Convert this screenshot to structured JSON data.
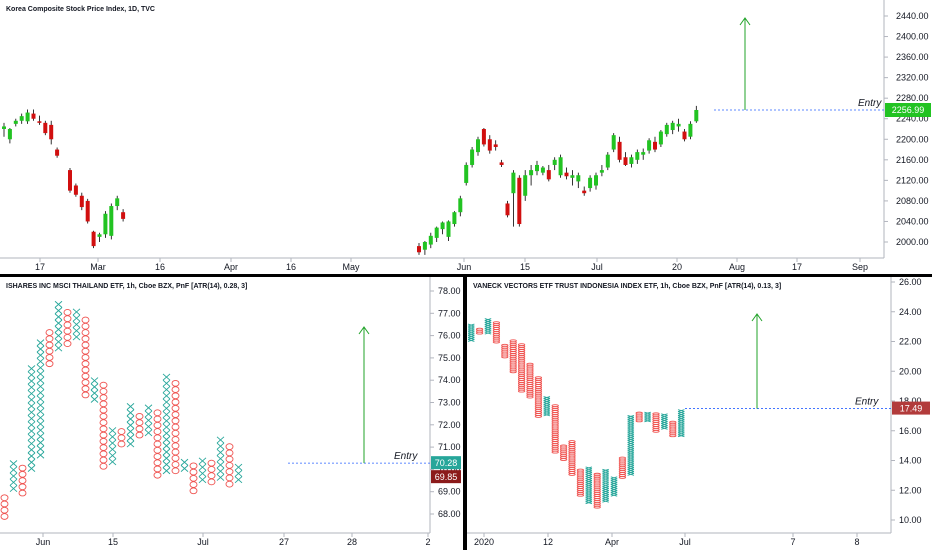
{
  "chart_data": [
    {
      "type": "candlestick",
      "title": "Korea Composite Stock Price Index, 1D, TVC",
      "x_tick_labels": [
        "17",
        "Mar",
        "16",
        "Apr",
        "16",
        "May",
        "Jun",
        "15",
        "Jul",
        "20",
        "Aug",
        "17",
        "Sep"
      ],
      "y_ticks": [
        2000,
        2040,
        2080,
        2120,
        2160,
        2200,
        2240,
        2280,
        2320,
        2360,
        2400,
        2440
      ],
      "ylim": [
        1975,
        2450
      ],
      "last_price": "2256.99",
      "entry_label": "Entry",
      "entry_level": 2257,
      "colors": {
        "up": "#22c322",
        "down": "#d10f0f"
      },
      "segments": [
        {
          "name": "feb",
          "candles": [
            {
              "o": 2220,
              "h": 2232,
              "l": 2205,
              "c": 2225
            },
            {
              "o": 2200,
              "h": 2222,
              "l": 2192,
              "c": 2220
            },
            {
              "o": 2230,
              "h": 2240,
              "l": 2225,
              "c": 2236
            },
            {
              "o": 2236,
              "h": 2250,
              "l": 2230,
              "c": 2245
            },
            {
              "o": 2235,
              "h": 2258,
              "l": 2230,
              "c": 2252
            },
            {
              "o": 2250,
              "h": 2258,
              "l": 2236,
              "c": 2240
            },
            {
              "o": 2235,
              "h": 2246,
              "l": 2228,
              "c": 2232
            },
            {
              "o": 2232,
              "h": 2236,
              "l": 2208,
              "c": 2212
            },
            {
              "o": 2228,
              "h": 2236,
              "l": 2190,
              "c": 2200
            },
            {
              "o": 2180,
              "h": 2184,
              "l": 2164,
              "c": 2168
            }
          ]
        },
        {
          "name": "mar",
          "candles": [
            {
              "o": 2140,
              "h": 2144,
              "l": 2096,
              "c": 2100
            },
            {
              "o": 2110,
              "h": 2114,
              "l": 2088,
              "c": 2092
            },
            {
              "o": 2090,
              "h": 2096,
              "l": 2062,
              "c": 2068
            },
            {
              "o": 2080,
              "h": 2084,
              "l": 2036,
              "c": 2040
            },
            {
              "o": 2020,
              "h": 2022,
              "l": 1988,
              "c": 1992
            },
            {
              "o": 2010,
              "h": 2018,
              "l": 2000,
              "c": 2015
            },
            {
              "o": 2015,
              "h": 2060,
              "l": 2008,
              "c": 2055
            },
            {
              "o": 2012,
              "h": 2075,
              "l": 2005,
              "c": 2070
            },
            {
              "o": 2070,
              "h": 2090,
              "l": 2062,
              "c": 2085
            },
            {
              "o": 2058,
              "h": 2064,
              "l": 2040,
              "c": 2045
            }
          ]
        },
        {
          "name": "junjul",
          "candles": [
            {
              "o": 1992,
              "h": 1998,
              "l": 1975,
              "c": 1980
            },
            {
              "o": 1985,
              "h": 2002,
              "l": 1975,
              "c": 2000
            },
            {
              "o": 1995,
              "h": 2018,
              "l": 1988,
              "c": 2012
            },
            {
              "o": 2008,
              "h": 2030,
              "l": 2000,
              "c": 2028
            },
            {
              "o": 2025,
              "h": 2040,
              "l": 2015,
              "c": 2038
            },
            {
              "o": 2010,
              "h": 2042,
              "l": 2002,
              "c": 2040
            },
            {
              "o": 2035,
              "h": 2060,
              "l": 2030,
              "c": 2058
            },
            {
              "o": 2058,
              "h": 2090,
              "l": 2050,
              "c": 2085
            },
            {
              "o": 2115,
              "h": 2155,
              "l": 2110,
              "c": 2150
            },
            {
              "o": 2150,
              "h": 2185,
              "l": 2145,
              "c": 2180
            },
            {
              "o": 2175,
              "h": 2205,
              "l": 2168,
              "c": 2200
            },
            {
              "o": 2220,
              "h": 2222,
              "l": 2186,
              "c": 2190
            },
            {
              "o": 2200,
              "h": 2208,
              "l": 2172,
              "c": 2178
            },
            {
              "o": 2190,
              "h": 2198,
              "l": 2178,
              "c": 2185
            },
            {
              "o": 2155,
              "h": 2160,
              "l": 2146,
              "c": 2150
            },
            {
              "o": 2075,
              "h": 2080,
              "l": 2048,
              "c": 2052
            },
            {
              "o": 2095,
              "h": 2140,
              "l": 2030,
              "c": 2135
            },
            {
              "o": 2125,
              "h": 2130,
              "l": 2030,
              "c": 2035
            },
            {
              "o": 2090,
              "h": 2140,
              "l": 2080,
              "c": 2130
            },
            {
              "o": 2130,
              "h": 2150,
              "l": 2110,
              "c": 2140
            },
            {
              "o": 2138,
              "h": 2158,
              "l": 2130,
              "c": 2150
            },
            {
              "o": 2135,
              "h": 2148,
              "l": 2130,
              "c": 2145
            },
            {
              "o": 2140,
              "h": 2150,
              "l": 2118,
              "c": 2122
            },
            {
              "o": 2150,
              "h": 2165,
              "l": 2140,
              "c": 2160
            },
            {
              "o": 2130,
              "h": 2170,
              "l": 2125,
              "c": 2165
            },
            {
              "o": 2135,
              "h": 2145,
              "l": 2122,
              "c": 2128
            },
            {
              "o": 2125,
              "h": 2140,
              "l": 2110,
              "c": 2130
            },
            {
              "o": 2118,
              "h": 2135,
              "l": 2105,
              "c": 2130
            },
            {
              "o": 2100,
              "h": 2108,
              "l": 2090,
              "c": 2095
            },
            {
              "o": 2105,
              "h": 2130,
              "l": 2098,
              "c": 2125
            },
            {
              "o": 2110,
              "h": 2135,
              "l": 2102,
              "c": 2130
            },
            {
              "o": 2135,
              "h": 2150,
              "l": 2128,
              "c": 2140
            },
            {
              "o": 2145,
              "h": 2175,
              "l": 2140,
              "c": 2170
            },
            {
              "o": 2180,
              "h": 2212,
              "l": 2175,
              "c": 2208
            },
            {
              "o": 2195,
              "h": 2205,
              "l": 2155,
              "c": 2160
            },
            {
              "o": 2165,
              "h": 2175,
              "l": 2148,
              "c": 2150
            },
            {
              "o": 2152,
              "h": 2170,
              "l": 2145,
              "c": 2165
            },
            {
              "o": 2160,
              "h": 2180,
              "l": 2152,
              "c": 2175
            },
            {
              "o": 2170,
              "h": 2182,
              "l": 2160,
              "c": 2175
            },
            {
              "o": 2178,
              "h": 2202,
              "l": 2172,
              "c": 2198
            },
            {
              "o": 2195,
              "h": 2205,
              "l": 2175,
              "c": 2180
            },
            {
              "o": 2190,
              "h": 2218,
              "l": 2185,
              "c": 2215
            },
            {
              "o": 2210,
              "h": 2232,
              "l": 2205,
              "c": 2228
            },
            {
              "o": 2218,
              "h": 2236,
              "l": 2210,
              "c": 2232
            },
            {
              "o": 2225,
              "h": 2240,
              "l": 2215,
              "c": 2230
            },
            {
              "o": 2215,
              "h": 2220,
              "l": 2196,
              "c": 2200
            },
            {
              "o": 2205,
              "h": 2235,
              "l": 2200,
              "c": 2230
            },
            {
              "o": 2235,
              "h": 2265,
              "l": 2232,
              "c": 2257
            }
          ]
        }
      ]
    },
    {
      "type": "point-and-figure",
      "title": "ISHARES INC MSCI THAILAND ETF, 1h, Cboe BZX, PnF [ATR(14), 0.28, 3]",
      "x_tick_labels": [
        "Jun",
        "15",
        "Jul",
        "27",
        "28",
        "2"
      ],
      "y_ticks": [
        "68.00",
        "69.00",
        "70.00",
        "71.00",
        "72.00",
        "73.00",
        "74.00",
        "75.00",
        "76.00",
        "77.00",
        "78.00"
      ],
      "ylim": [
        67.5,
        78.3
      ],
      "box_size": 0.28,
      "last_price": "70.28",
      "other_price": "69.85",
      "entry_label": "Entry",
      "entry_level": 70.28,
      "colors": {
        "x": "#26a69a",
        "o": "#ef5350"
      },
      "columns": [
        {
          "t": "O",
          "lo": 67.75,
          "hi": 69.0
        },
        {
          "t": "X",
          "lo": 69.0,
          "hi": 70.4
        },
        {
          "t": "O",
          "lo": 68.8,
          "hi": 70.1
        },
        {
          "t": "X",
          "lo": 69.9,
          "hi": 74.6
        },
        {
          "t": "X",
          "lo": 70.5,
          "hi": 75.8
        },
        {
          "t": "O",
          "lo": 74.6,
          "hi": 76.2
        },
        {
          "t": "X",
          "lo": 75.3,
          "hi": 77.4
        },
        {
          "t": "O",
          "lo": 75.5,
          "hi": 77.2
        },
        {
          "t": "X",
          "lo": 75.8,
          "hi": 77.2
        },
        {
          "t": "O",
          "lo": 73.2,
          "hi": 76.8
        },
        {
          "t": "X",
          "lo": 73.0,
          "hi": 74.0
        },
        {
          "t": "O",
          "lo": 70.0,
          "hi": 73.8
        },
        {
          "t": "X",
          "lo": 70.2,
          "hi": 72.0
        },
        {
          "t": "O",
          "lo": 71.0,
          "hi": 71.8
        },
        {
          "t": "X",
          "lo": 71.0,
          "hi": 72.9
        },
        {
          "t": "O",
          "lo": 71.4,
          "hi": 72.5
        },
        {
          "t": "X",
          "lo": 71.5,
          "hi": 72.9
        },
        {
          "t": "O",
          "lo": 69.6,
          "hi": 72.6
        },
        {
          "t": "X",
          "lo": 69.8,
          "hi": 74.4
        },
        {
          "t": "O",
          "lo": 69.8,
          "hi": 74.1
        },
        {
          "t": "X",
          "lo": 69.9,
          "hi": 70.6
        },
        {
          "t": "O",
          "lo": 68.9,
          "hi": 70.4
        },
        {
          "t": "X",
          "lo": 69.4,
          "hi": 70.5
        },
        {
          "t": "O",
          "lo": 69.3,
          "hi": 70.3
        },
        {
          "t": "X",
          "lo": 69.5,
          "hi": 71.4
        },
        {
          "t": "O",
          "lo": 69.2,
          "hi": 71.1
        },
        {
          "t": "X",
          "lo": 69.4,
          "hi": 70.3
        }
      ]
    },
    {
      "type": "point-and-figure",
      "title": "VANECK VECTORS ETF TRUST INDONESIA INDEX ETF, 1h, Cboe BZX, PnF [ATR(14), 0.13, 3]",
      "x_tick_labels": [
        "2020",
        "12",
        "Apr",
        "Jul",
        "7",
        "8"
      ],
      "y_ticks": [
        "10.00",
        "12.00",
        "14.00",
        "16.00",
        "18.00",
        "20.00",
        "22.00",
        "24.00",
        "26.00"
      ],
      "ylim": [
        9.4,
        26.6
      ],
      "box_size": 0.13,
      "last_price": "17.49",
      "entry_label": "Entry",
      "entry_level": 17.49,
      "colors": {
        "x": "#26a69a",
        "o": "#ef5350"
      },
      "columns": [
        {
          "t": "X",
          "lo": 22.0,
          "hi": 23.2
        },
        {
          "t": "O",
          "lo": 22.5,
          "hi": 22.9
        },
        {
          "t": "X",
          "lo": 22.5,
          "hi": 23.5
        },
        {
          "t": "O",
          "lo": 21.9,
          "hi": 23.3
        },
        {
          "t": "O",
          "lo": 20.9,
          "hi": 21.8
        },
        {
          "t": "O",
          "lo": 19.9,
          "hi": 22.1
        },
        {
          "t": "O",
          "lo": 18.6,
          "hi": 21.9
        },
        {
          "t": "O",
          "lo": 18.2,
          "hi": 20.6
        },
        {
          "t": "O",
          "lo": 16.9,
          "hi": 19.6
        },
        {
          "t": "X",
          "lo": 17.0,
          "hi": 18.3
        },
        {
          "t": "O",
          "lo": 14.5,
          "hi": 17.8
        },
        {
          "t": "O",
          "lo": 14.0,
          "hi": 15.1
        },
        {
          "t": "O",
          "lo": 13.0,
          "hi": 15.3
        },
        {
          "t": "O",
          "lo": 11.6,
          "hi": 13.4
        },
        {
          "t": "X",
          "lo": 11.1,
          "hi": 13.6
        },
        {
          "t": "O",
          "lo": 10.8,
          "hi": 13.1
        },
        {
          "t": "X",
          "lo": 11.2,
          "hi": 13.4
        },
        {
          "t": "X",
          "lo": 11.6,
          "hi": 12.9
        },
        {
          "t": "O",
          "lo": 12.8,
          "hi": 14.2
        },
        {
          "t": "X",
          "lo": 13.0,
          "hi": 17.0
        },
        {
          "t": "O",
          "lo": 16.6,
          "hi": 17.3
        },
        {
          "t": "X",
          "lo": 16.6,
          "hi": 17.3
        },
        {
          "t": "O",
          "lo": 15.9,
          "hi": 17.2
        },
        {
          "t": "X",
          "lo": 16.1,
          "hi": 17.1
        },
        {
          "t": "O",
          "lo": 15.6,
          "hi": 16.6
        },
        {
          "t": "X",
          "lo": 15.6,
          "hi": 17.4
        }
      ]
    }
  ]
}
